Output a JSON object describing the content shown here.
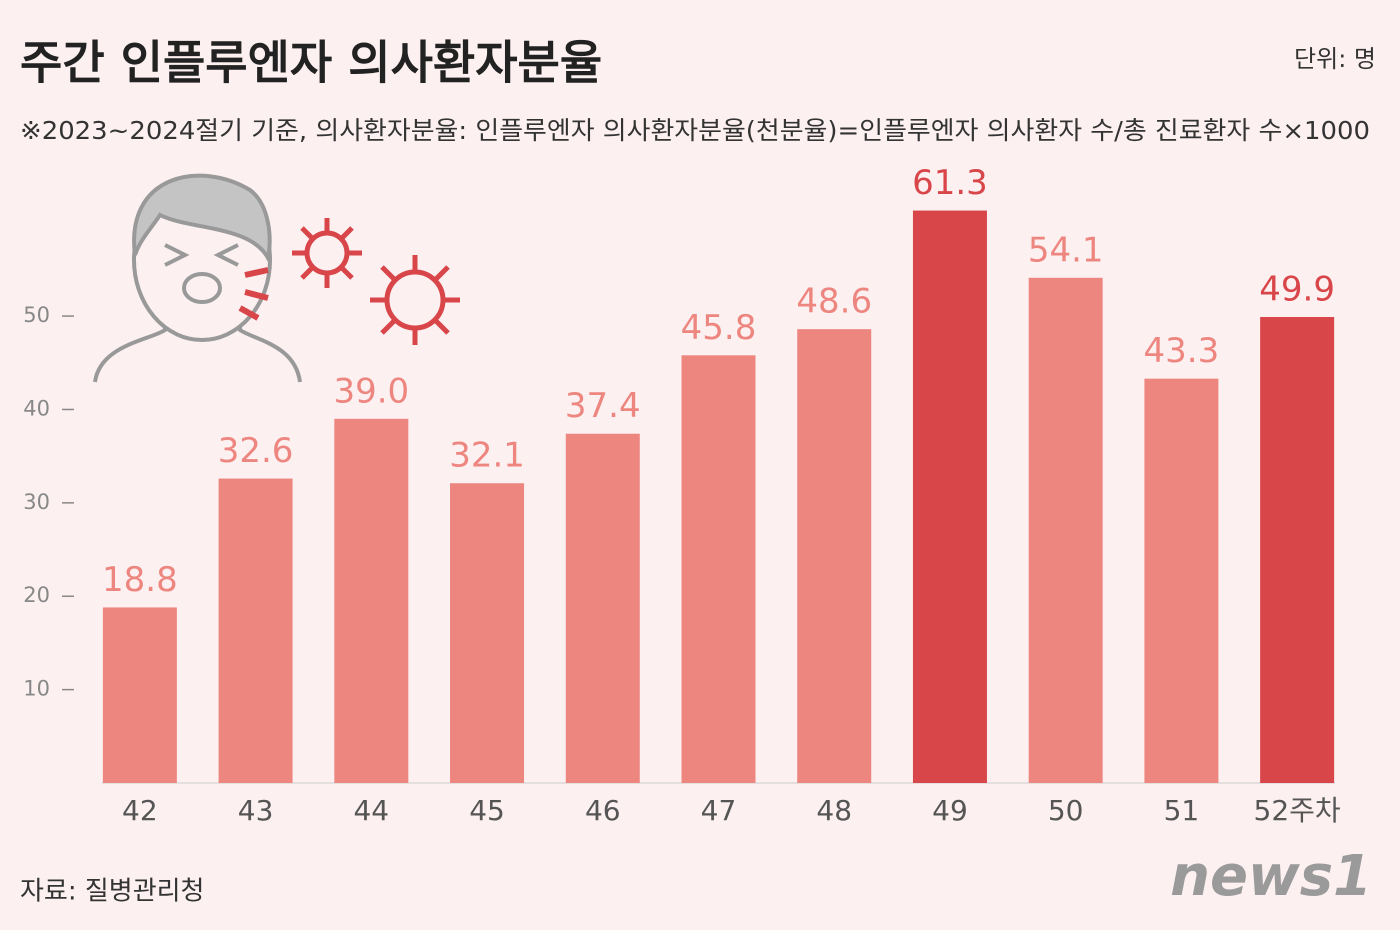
{
  "chart_data": {
    "type": "bar",
    "title": "주간 인플루엔자 의사환자분율",
    "unit": "단위: 명",
    "subtitle": "※2023~2024절기 기준, 의사환자분율: 인플루엔자 의사환자분율(천분율)=인플루엔자 의사환자 수/총 진료환자 수×1000",
    "source": "자료: 질병관리청",
    "logo": "news1",
    "categories": [
      "42",
      "43",
      "44",
      "45",
      "46",
      "47",
      "48",
      "49",
      "50",
      "51",
      "52주차"
    ],
    "values": [
      18.8,
      32.6,
      39.0,
      32.1,
      37.4,
      45.8,
      48.6,
      61.3,
      54.1,
      43.3,
      49.9
    ],
    "value_labels": [
      "18.8",
      "32.6",
      "39.0",
      "32.1",
      "37.4",
      "45.8",
      "48.6",
      "61.3",
      "54.1",
      "43.3",
      "49.9"
    ],
    "colors": [
      "#ee8680",
      "#ee8680",
      "#ee8680",
      "#ee8680",
      "#ee8680",
      "#ee8680",
      "#ee8680",
      "#d9464a",
      "#ee8680",
      "#ee8680",
      "#d9464a"
    ],
    "ylim": [
      0,
      66.5
    ],
    "yticks": [
      10,
      20,
      30,
      40,
      50
    ],
    "grid": false
  }
}
